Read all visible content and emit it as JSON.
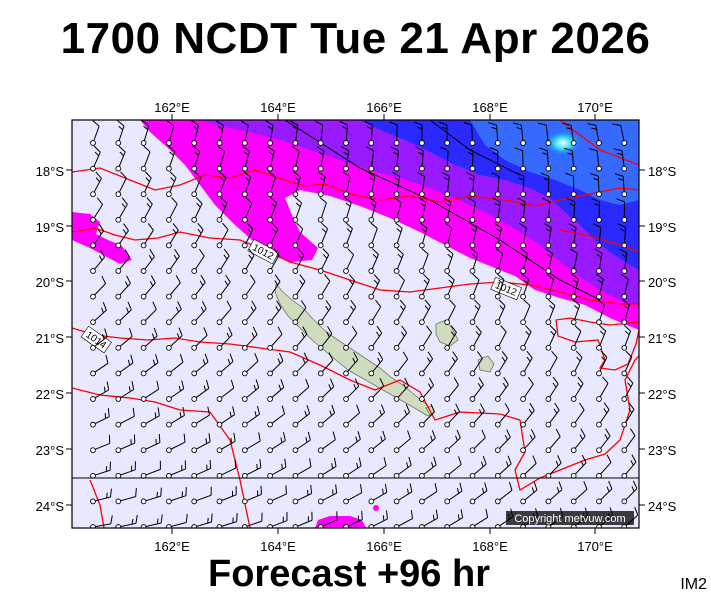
{
  "title": "1700 NCDT Tue 21 Apr 2026",
  "footer": "Forecast +96 hr",
  "code": "IM2",
  "copyright": "Copyright metvuw.com",
  "lon_labels": [
    "162°E",
    "164°E",
    "166°E",
    "168°E",
    "170°E"
  ],
  "lat_labels": [
    "18°S",
    "19°S",
    "20°S",
    "21°S",
    "22°S",
    "23°S",
    "24°S"
  ],
  "isobar_labels": [
    "1012",
    "1012",
    "1014"
  ],
  "colors": {
    "background_sea": "#e8e8ff",
    "rain_light": "#ff00ff",
    "rain_moderate": "#8000ff",
    "rain_heavy": "#0000ff",
    "rain_very_heavy": "#00c0ff",
    "isobar": "#ff0000",
    "land": "#cfdcbf"
  }
}
